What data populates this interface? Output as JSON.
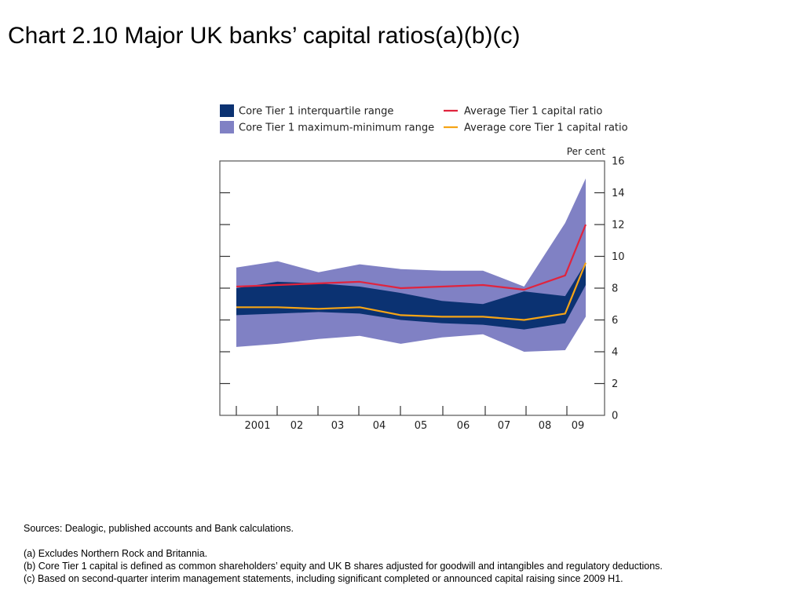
{
  "title": "Chart 2.10  Major UK banks’ capital ratios(a)(b)(c)",
  "chart_data": {
    "type": "area",
    "y_unit_label": "Per cent",
    "x_tick_labels": [
      "2001",
      "02",
      "03",
      "04",
      "05",
      "06",
      "07",
      "08",
      "09"
    ],
    "y_ticks": [
      0,
      2,
      4,
      6,
      8,
      10,
      12,
      14,
      16
    ],
    "ylim": [
      0,
      16
    ],
    "legend": [
      {
        "label": "Core Tier 1 interquartile range",
        "kind": "band",
        "color": "#0b3272"
      },
      {
        "label": "Core Tier 1 maximum-minimum range",
        "kind": "band",
        "color": "#8081c4"
      },
      {
        "label": "Average Tier 1 capital ratio",
        "kind": "line",
        "color": "#e0243e"
      },
      {
        "label": "Average core Tier 1 capital ratio",
        "kind": "line",
        "color": "#f5a416"
      }
    ],
    "legend_placement": "top",
    "grid": false,
    "x_years": [
      2000.5,
      2001.5,
      2002.5,
      2003.5,
      2004.5,
      2005.5,
      2006.5,
      2007.5,
      2008.5,
      2009.0
    ],
    "minmax_range": {
      "max": [
        9.3,
        9.7,
        9.0,
        9.5,
        9.2,
        9.1,
        9.1,
        8.1,
        12.1,
        14.9
      ],
      "min": [
        4.3,
        4.5,
        4.8,
        5.0,
        4.5,
        4.9,
        5.1,
        4.0,
        4.1,
        6.2
      ]
    },
    "interquartile_range": {
      "q3": [
        8.0,
        8.4,
        8.3,
        8.1,
        7.7,
        7.2,
        7.0,
        7.8,
        7.5,
        9.6
      ],
      "q1": [
        6.3,
        6.4,
        6.5,
        6.4,
        6.0,
        5.8,
        5.7,
        5.4,
        5.8,
        8.2
      ]
    },
    "average_tier1": [
      8.1,
      8.2,
      8.3,
      8.4,
      8.0,
      8.1,
      8.2,
      7.9,
      8.8,
      12.0
    ],
    "average_core_tier1": [
      6.8,
      6.8,
      6.7,
      6.8,
      6.3,
      6.2,
      6.2,
      6.0,
      6.4,
      9.6
    ]
  },
  "notes": {
    "sources": "Sources:  Dealogic, published accounts and Bank calculations.",
    "a": "(a)  Excludes Northern Rock and Britannia.",
    "b": "(b)  Core Tier 1 capital is defined as common shareholders’ equity and UK B shares adjusted for goodwill and intangibles and regulatory deductions.",
    "c": "(c)  Based on second-quarter interim management statements, including significant completed or announced capital raising since 2009 H1."
  }
}
